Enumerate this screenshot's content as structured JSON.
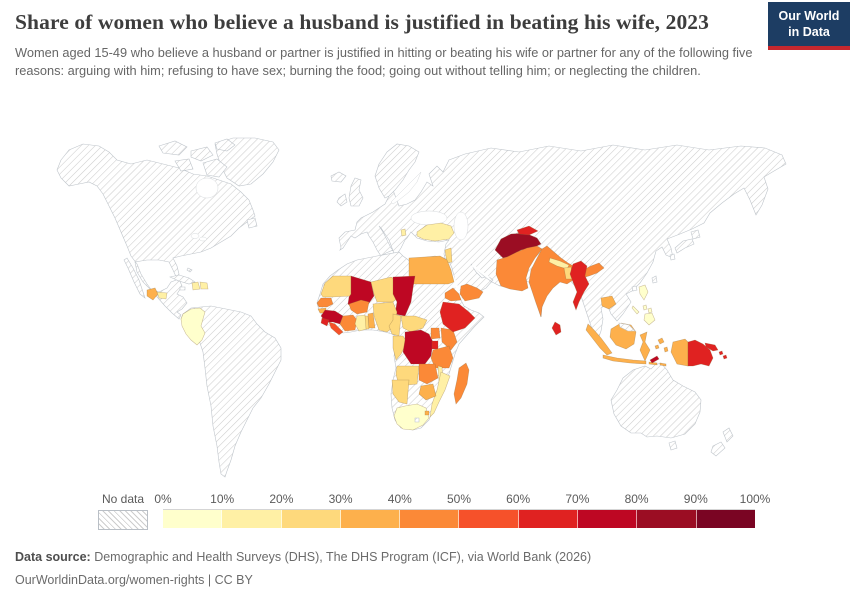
{
  "header": {
    "title": "Share of women who believe a husband is justified in beating his wife, 2023",
    "subtitle": "Women aged 15-49 who believe a husband or partner is justified in hitting or beating his wife or partner for any of the following five reasons: arguing with him; refusing to have sex; burning the food; going out without telling him; or neglecting the children.",
    "logo": {
      "line1": "Our World",
      "line2": "in Data",
      "bg_color": "#1d3d63",
      "accent_color": "#c5272d"
    }
  },
  "legend": {
    "no_data_label": "No data",
    "tick_labels": [
      "0%",
      "10%",
      "20%",
      "30%",
      "40%",
      "50%",
      "60%",
      "70%",
      "80%",
      "90%",
      "100%"
    ]
  },
  "footer": {
    "source_label": "Data source:",
    "source_text": " Demographic and Health Surveys (DHS), The DHS Program (ICF), via World Bank (2026)",
    "note": "OurWorldinData.org/women-rights | CC BY"
  },
  "chart_data": {
    "type": "choropleth_map",
    "title": "Share of women who believe a husband is justified in beating his wife, 2023",
    "unit": "% of women aged 15-49",
    "legend_position": "bottom",
    "value_range": [
      0,
      100
    ],
    "legend_bins": [
      {
        "label": "0-10%",
        "color": "#FFFFCC"
      },
      {
        "label": "10-20%",
        "color": "#FFF0A5"
      },
      {
        "label": "20-30%",
        "color": "#FED97C"
      },
      {
        "label": "30-40%",
        "color": "#FDB04C"
      },
      {
        "label": "40-50%",
        "color": "#FB8937"
      },
      {
        "label": "50-60%",
        "color": "#F6512A"
      },
      {
        "label": "60-70%",
        "color": "#E02221"
      },
      {
        "label": "70-80%",
        "color": "#BE0723"
      },
      {
        "label": "80-90%",
        "color": "#9B0D23"
      },
      {
        "label": "90-100%",
        "color": "#7A0523"
      }
    ],
    "countries": [
      {
        "id": "colombia",
        "name": "Colombia",
        "value_bin": "0-10%",
        "bin": 0
      },
      {
        "id": "south-africa",
        "name": "South Africa",
        "value_bin": "0-10%",
        "bin": 0
      },
      {
        "id": "philippines",
        "name": "Philippines",
        "value_bin": "0-10%",
        "bin": 0
      },
      {
        "id": "haiti",
        "name": "Haiti",
        "value_bin": "10-20%",
        "bin": 1
      },
      {
        "id": "dominican-republic",
        "name": "Dominican Republic",
        "value_bin": "10-20%",
        "bin": 1
      },
      {
        "id": "honduras",
        "name": "Honduras",
        "value_bin": "10-20%",
        "bin": 1
      },
      {
        "id": "turkey",
        "name": "Turkey",
        "value_bin": "10-20%",
        "bin": 1
      },
      {
        "id": "albania",
        "name": "Albania",
        "value_bin": "10-20%",
        "bin": 1
      },
      {
        "id": "ghana",
        "name": "Ghana",
        "value_bin": "10-20%",
        "bin": 1
      },
      {
        "id": "nepal",
        "name": "Nepal",
        "value_bin": "10-20%",
        "bin": 1
      },
      {
        "id": "malawi",
        "name": "Malawi",
        "value_bin": "10-20%",
        "bin": 1
      },
      {
        "id": "mozambique",
        "name": "Mozambique",
        "value_bin": "10-20%",
        "bin": 1
      },
      {
        "id": "jordan",
        "name": "Jordan",
        "value_bin": "20-30%",
        "bin": 2
      },
      {
        "id": "mauritania",
        "name": "Mauritania",
        "value_bin": "20-30%",
        "bin": 2
      },
      {
        "id": "niger",
        "name": "Niger",
        "value_bin": "20-30%",
        "bin": 2
      },
      {
        "id": "nigeria",
        "name": "Nigeria",
        "value_bin": "20-30%",
        "bin": 2
      },
      {
        "id": "togo",
        "name": "Togo",
        "value_bin": "20-30%",
        "bin": 2
      },
      {
        "id": "cameroon",
        "name": "Cameroon",
        "value_bin": "20-30%",
        "bin": 2
      },
      {
        "id": "car",
        "name": "Central African Republic",
        "value_bin": "20-30%",
        "bin": 2
      },
      {
        "id": "gabon-congo",
        "name": "Gabon / Congo",
        "value_bin": "20-30%",
        "bin": 2
      },
      {
        "id": "angola",
        "name": "Angola",
        "value_bin": "20-30%",
        "bin": 2
      },
      {
        "id": "namibia",
        "name": "Namibia",
        "value_bin": "20-30%",
        "bin": 2
      },
      {
        "id": "bangladesh",
        "name": "Bangladesh",
        "value_bin": "20-30%",
        "bin": 2
      },
      {
        "id": "guatemala",
        "name": "Guatemala",
        "value_bin": "30-40%",
        "bin": 3
      },
      {
        "id": "egypt",
        "name": "Egypt",
        "value_bin": "30-40%",
        "bin": 3
      },
      {
        "id": "guinea-bissau",
        "name": "Guinea-Bissau",
        "value_bin": "30-40%",
        "bin": 3
      },
      {
        "id": "benin",
        "name": "Benin",
        "value_bin": "30-40%",
        "bin": 3
      },
      {
        "id": "zimbabwe",
        "name": "Zimbabwe",
        "value_bin": "30-40%",
        "bin": 3
      },
      {
        "id": "eswatini",
        "name": "Eswatini",
        "value_bin": "30-40%",
        "bin": 3
      },
      {
        "id": "cambodia",
        "name": "Cambodia",
        "value_bin": "30-40%",
        "bin": 3
      },
      {
        "id": "indonesia",
        "name": "Indonesia",
        "value_bin": "30-40%",
        "bin": 3
      },
      {
        "id": "senegal",
        "name": "Senegal",
        "value_bin": "40-50%",
        "bin": 4
      },
      {
        "id": "ivory-coast",
        "name": "Cote d'Ivoire",
        "value_bin": "40-50%",
        "bin": 4
      },
      {
        "id": "burkina-faso",
        "name": "Burkina Faso",
        "value_bin": "40-50%",
        "bin": 4
      },
      {
        "id": "uganda",
        "name": "Uganda",
        "value_bin": "40-50%",
        "bin": 4
      },
      {
        "id": "kenya",
        "name": "Kenya",
        "value_bin": "40-50%",
        "bin": 4
      },
      {
        "id": "tanzania",
        "name": "Tanzania",
        "value_bin": "40-50%",
        "bin": 4
      },
      {
        "id": "zambia",
        "name": "Zambia",
        "value_bin": "40-50%",
        "bin": 4
      },
      {
        "id": "eritrea",
        "name": "Eritrea",
        "value_bin": "40-50%",
        "bin": 4
      },
      {
        "id": "yemen",
        "name": "Yemen",
        "value_bin": "40-50%",
        "bin": 4
      },
      {
        "id": "madagascar",
        "name": "Madagascar",
        "value_bin": "40-50%",
        "bin": 4
      },
      {
        "id": "pakistan",
        "name": "Pakistan",
        "value_bin": "40-50%",
        "bin": 4
      },
      {
        "id": "india",
        "name": "India",
        "value_bin": "40-50%",
        "bin": 4
      },
      {
        "id": "liberia",
        "name": "Liberia",
        "value_bin": "50-60%",
        "bin": 5
      },
      {
        "id": "sierra-leone",
        "name": "Sierra Leone",
        "value_bin": "60-70%",
        "bin": 6
      },
      {
        "id": "ethiopia",
        "name": "Ethiopia",
        "value_bin": "60-70%",
        "bin": 6
      },
      {
        "id": "rwanda-burundi",
        "name": "Rwanda / Burundi",
        "value_bin": "60-70%",
        "bin": 6
      },
      {
        "id": "tajikistan",
        "name": "Tajikistan",
        "value_bin": "60-70%",
        "bin": 6
      },
      {
        "id": "myanmar",
        "name": "Myanmar",
        "value_bin": "60-70%",
        "bin": 6
      },
      {
        "id": "sri-lanka",
        "name": "Sri Lanka",
        "value_bin": "60-70%",
        "bin": 6
      },
      {
        "id": "papua-new-guinea",
        "name": "Papua New Guinea",
        "value_bin": "60-70%",
        "bin": 6
      },
      {
        "id": "new-britain",
        "name": "Papua New Guinea (New Britain)",
        "value_bin": "60-70%",
        "bin": 6
      },
      {
        "id": "solomon",
        "name": "Solomon Islands",
        "value_bin": "60-70%",
        "bin": 6
      },
      {
        "id": "mali",
        "name": "Mali",
        "value_bin": "70-80%",
        "bin": 7
      },
      {
        "id": "guinea",
        "name": "Guinea",
        "value_bin": "70-80%",
        "bin": 7
      },
      {
        "id": "chad",
        "name": "Chad",
        "value_bin": "70-80%",
        "bin": 7
      },
      {
        "id": "drc",
        "name": "Democratic Republic of Congo",
        "value_bin": "70-80%",
        "bin": 7
      },
      {
        "id": "timor-leste",
        "name": "Timor-Leste",
        "value_bin": "70-80%",
        "bin": 7
      },
      {
        "id": "afghanistan",
        "name": "Afghanistan",
        "value_bin": "80-90%",
        "bin": 8
      }
    ],
    "no_data_regions": [
      "North America",
      "Greenland",
      "South America (except Colombia)",
      "Europe",
      "Russia",
      "Central Asia",
      "China",
      "Middle East (most)",
      "North Africa",
      "Sudan",
      "Somalia",
      "Botswana",
      "Thailand",
      "Vietnam",
      "Malaysia",
      "Japan",
      "Australia",
      "New Zealand"
    ]
  }
}
